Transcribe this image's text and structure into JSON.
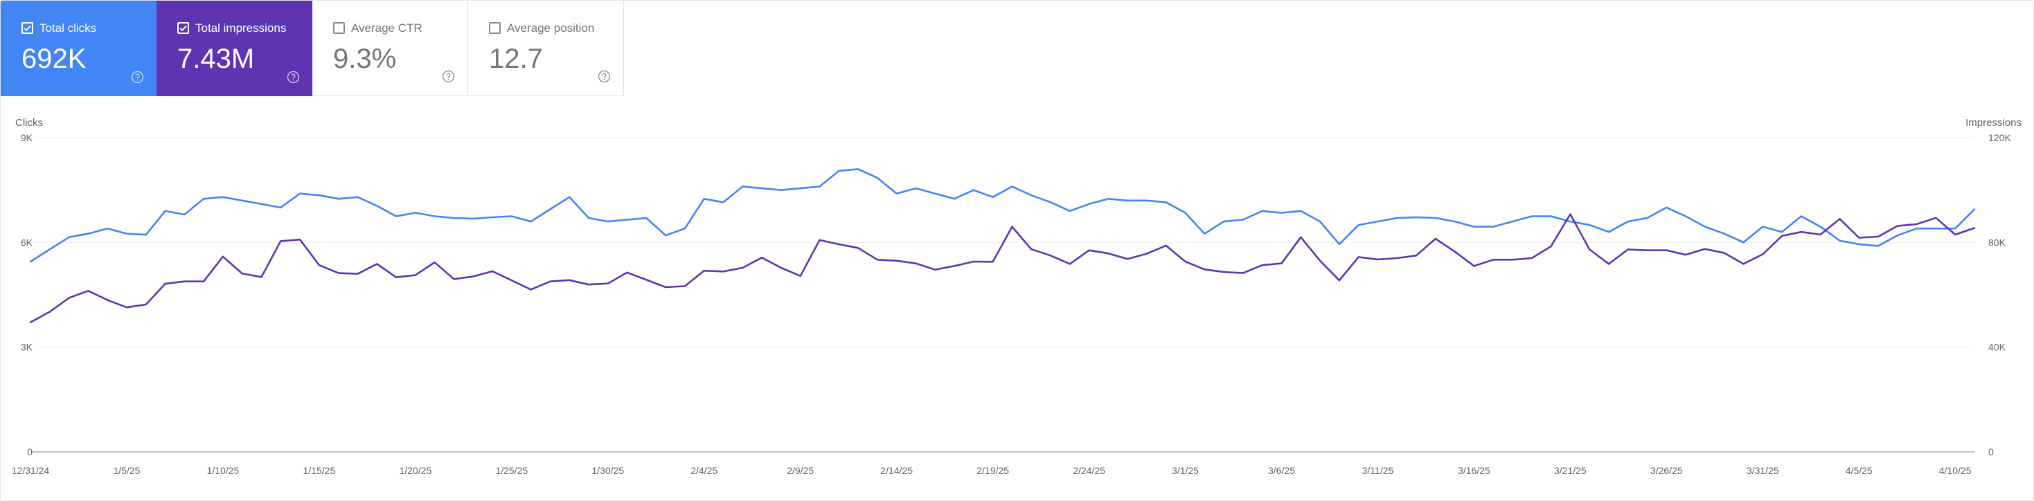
{
  "cards": {
    "clicks": {
      "label": "Total clicks",
      "value": "692K",
      "checked": true,
      "color": "#4285f4",
      "help_icon": "help-circle-icon"
    },
    "impressions": {
      "label": "Total impressions",
      "value": "7.43M",
      "checked": true,
      "color": "#5e35b1",
      "help_icon": "help-circle-icon"
    },
    "ctr": {
      "label": "Average CTR",
      "value": "9.3%",
      "checked": false,
      "help_icon": "help-circle-icon"
    },
    "position": {
      "label": "Average position",
      "value": "12.7",
      "checked": false,
      "help_icon": "help-circle-icon"
    }
  },
  "chart_data": {
    "type": "line",
    "left_axis_title": "Clicks",
    "right_axis_title": "Impressions",
    "left_axis": {
      "min": 0,
      "max": 9000,
      "ticks": [
        0,
        3000,
        6000,
        9000
      ],
      "tick_labels": [
        "0",
        "3K",
        "6K",
        "9K"
      ]
    },
    "right_axis": {
      "min": 0,
      "max": 120000,
      "ticks": [
        0,
        40000,
        80000,
        120000
      ],
      "tick_labels": [
        "0",
        "40K",
        "80K",
        "120K"
      ]
    },
    "x_tick_labels": [
      {
        "index": 0,
        "label": "12/31/24"
      },
      {
        "index": 5,
        "label": "1/5/25"
      },
      {
        "index": 10,
        "label": "1/10/25"
      },
      {
        "index": 15,
        "label": "1/15/25"
      },
      {
        "index": 20,
        "label": "1/20/25"
      },
      {
        "index": 25,
        "label": "1/25/25"
      },
      {
        "index": 30,
        "label": "1/30/25"
      },
      {
        "index": 35,
        "label": "2/4/25"
      },
      {
        "index": 40,
        "label": "2/9/25"
      },
      {
        "index": 45,
        "label": "2/14/25"
      },
      {
        "index": 50,
        "label": "2/19/25"
      },
      {
        "index": 55,
        "label": "2/24/25"
      },
      {
        "index": 60,
        "label": "3/1/25"
      },
      {
        "index": 65,
        "label": "3/6/25"
      },
      {
        "index": 70,
        "label": "3/11/25"
      },
      {
        "index": 75,
        "label": "3/16/25"
      },
      {
        "index": 80,
        "label": "3/21/25"
      },
      {
        "index": 85,
        "label": "3/26/25"
      },
      {
        "index": 90,
        "label": "3/31/25"
      },
      {
        "index": 95,
        "label": "4/5/25"
      },
      {
        "index": 100,
        "label": "4/10/25"
      }
    ],
    "grid": true,
    "series": [
      {
        "name": "Clicks",
        "axis": "left",
        "color": "#4285f4",
        "values": [
          5450,
          5800,
          6150,
          6250,
          6400,
          6250,
          6220,
          6900,
          6800,
          7250,
          7300,
          7200,
          7100,
          7000,
          7400,
          7350,
          7250,
          7300,
          7050,
          6750,
          6850,
          6750,
          6700,
          6680,
          6720,
          6750,
          6600,
          6950,
          7300,
          6700,
          6600,
          6650,
          6700,
          6200,
          6400,
          7250,
          7150,
          7600,
          7550,
          7500,
          7550,
          7600,
          8050,
          8100,
          7850,
          7400,
          7550,
          7400,
          7250,
          7500,
          7300,
          7600,
          7350,
          7150,
          6900,
          7100,
          7250,
          7200,
          7200,
          7150,
          6850,
          6250,
          6600,
          6650,
          6900,
          6850,
          6900,
          6600,
          5950,
          6500,
          6600,
          6700,
          6720,
          6700,
          6600,
          6450,
          6450,
          6600,
          6750,
          6750,
          6600,
          6500,
          6300,
          6600,
          6700,
          7000,
          6750,
          6450,
          6250,
          6000,
          6450,
          6300,
          6750,
          6450,
          6050,
          5950,
          5900,
          6200,
          6400,
          6400,
          6400,
          6950
        ]
      },
      {
        "name": "Impressions",
        "axis": "right",
        "color": "#5e35b1",
        "values": [
          49500,
          53500,
          58800,
          61500,
          58000,
          55200,
          56300,
          64200,
          65100,
          65100,
          74600,
          68100,
          66800,
          80500,
          81100,
          71300,
          68300,
          68000,
          71800,
          66700,
          67500,
          72400,
          66000,
          67000,
          69000,
          65500,
          62000,
          65100,
          65600,
          63900,
          64300,
          68500,
          65700,
          62900,
          63300,
          69200,
          68900,
          70300,
          74200,
          70300,
          67200,
          80900,
          79300,
          77900,
          73400,
          73000,
          72000,
          69600,
          71000,
          72700,
          72600,
          86000,
          77400,
          75000,
          71800,
          77000,
          75800,
          73700,
          75700,
          78800,
          72700,
          69700,
          68700,
          68300,
          71300,
          72000,
          82000,
          73000,
          65500,
          74400,
          73500,
          74000,
          75000,
          81400,
          76500,
          71000,
          73400,
          73400,
          74000,
          78500,
          90800,
          77300,
          71800,
          77300,
          77000,
          77000,
          75300,
          77500,
          76000,
          71800,
          75500,
          82500,
          84000,
          83000,
          89000,
          81800,
          82200,
          86300,
          87000,
          89400,
          83000,
          85500
        ]
      }
    ]
  }
}
